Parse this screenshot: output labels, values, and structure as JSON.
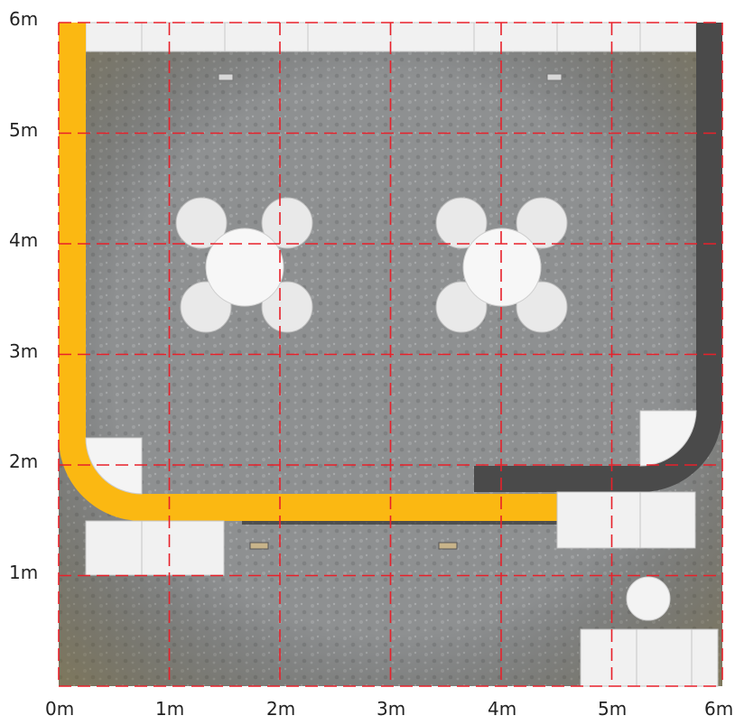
{
  "plan": {
    "y_axis_labels": [
      "6m",
      "5m",
      "4m",
      "3m",
      "2m",
      "1m"
    ],
    "x_axis_labels": [
      "0m",
      "1m",
      "2m",
      "3m",
      "4m",
      "5m",
      "6m"
    ],
    "grid_color": "#e8202a",
    "floor_color": "#8f9191",
    "yellow_track_color": "#fbb812",
    "dark_track_color": "#4a4a4a",
    "furniture_color": "#f2f2f2"
  }
}
